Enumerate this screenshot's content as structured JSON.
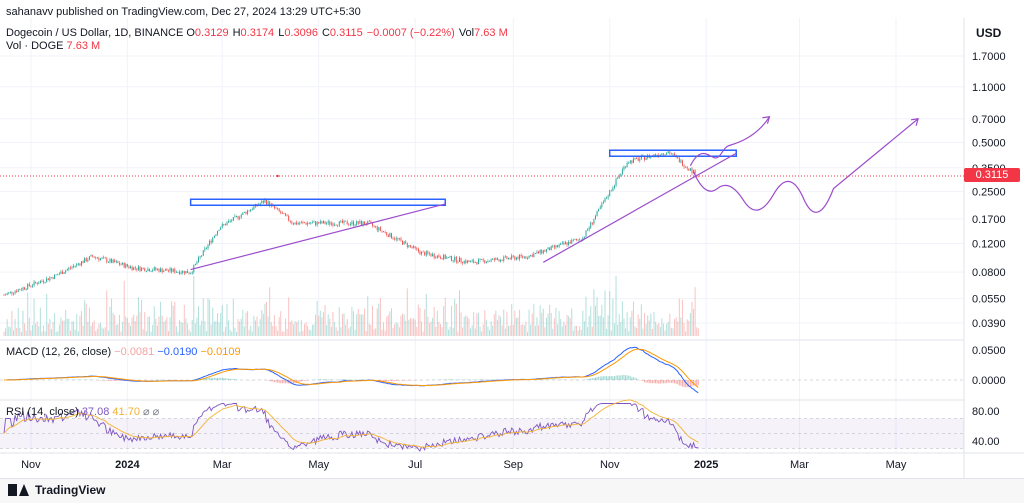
{
  "header": {
    "publisher": "sahanavv published on TradingView.com, Dec 27, 2024 13:29 UTC+5:30",
    "symbol": "Dogecoin / US Dollar, 1D, BINANCE",
    "ohlc": [
      {
        "k": "O",
        "v": "0.3129"
      },
      {
        "k": "H",
        "v": "0.3174"
      },
      {
        "k": "L",
        "v": "0.3096"
      },
      {
        "k": "C",
        "v": "0.3115"
      },
      {
        "k": "",
        "v": "−0.0007 (−0.22%)"
      },
      {
        "k": "Vol",
        "v": "7.63 M"
      }
    ],
    "vol_label": "Vol · DOGE",
    "vol_value": "7.63 M"
  },
  "price_axis": {
    "currency": "USD",
    "labels": [
      "1.7000",
      "1.1000",
      "0.7000",
      "0.5000",
      "0.3500",
      "0.2500",
      "0.1700",
      "0.1200",
      "0.0800",
      "0.0550",
      "0.0390"
    ],
    "last_price": "0.3115"
  },
  "macd": {
    "title": "MACD (12, 26, close)",
    "values": [
      "−0.0081",
      "−0.0190",
      "−0.0109"
    ],
    "axis": [
      "0.0500",
      "0.0000"
    ]
  },
  "rsi": {
    "title": "RSI (14, close)",
    "values": [
      "37.08",
      "41.70"
    ],
    "suffix": "⌀ ⌀",
    "axis": [
      "80.00",
      "40.00"
    ]
  },
  "time_axis": [
    "Nov",
    "2024",
    "Mar",
    "May",
    "Jul",
    "Sep",
    "Nov",
    "2025",
    "Mar",
    "May"
  ],
  "footer": {
    "brand": "TradingView"
  },
  "colors": {
    "up": "#26a69a",
    "down": "#ef5350",
    "macd": "#2962ff",
    "signal": "#ff9800",
    "rsi": "#7e57c2",
    "rsi_ma": "#f2b233",
    "annotation_box": "#2962ff",
    "annotation_line": "#9c4dcc",
    "last_price": "#f23645"
  },
  "chart_data": {
    "type": "candlestick",
    "symbol": "DOGE/USD",
    "interval": "1D",
    "y_scale": "log",
    "ylim": [
      0.035,
      2.0
    ],
    "x_range": [
      "2023-10-15",
      "2025-06-01"
    ],
    "approx_close_path": [
      {
        "date": "2023-10-15",
        "close": 0.058
      },
      {
        "date": "2023-11-15",
        "close": 0.075
      },
      {
        "date": "2023-12-10",
        "close": 0.1
      },
      {
        "date": "2024-01-05",
        "close": 0.085
      },
      {
        "date": "2024-02-10",
        "close": 0.08
      },
      {
        "date": "2024-02-28",
        "close": 0.15
      },
      {
        "date": "2024-03-28",
        "close": 0.22
      },
      {
        "date": "2024-04-15",
        "close": 0.16
      },
      {
        "date": "2024-06-01",
        "close": 0.16
      },
      {
        "date": "2024-07-05",
        "close": 0.105
      },
      {
        "date": "2024-08-05",
        "close": 0.092
      },
      {
        "date": "2024-09-10",
        "close": 0.1
      },
      {
        "date": "2024-10-15",
        "close": 0.13
      },
      {
        "date": "2024-11-12",
        "close": 0.38
      },
      {
        "date": "2024-12-08",
        "close": 0.44
      },
      {
        "date": "2024-12-27",
        "close": 0.3115
      }
    ],
    "last_price": 0.3115,
    "macd": {
      "macd": -0.019,
      "signal": -0.0109,
      "histogram": -0.0081
    },
    "rsi": {
      "rsi": 37.08,
      "ma": 41.7,
      "levels": [
        70,
        30
      ]
    },
    "annotations": [
      {
        "type": "resistance-box",
        "level": 0.215,
        "from": "2024-02-10",
        "to": "2024-07-20"
      },
      {
        "type": "resistance-box",
        "level": 0.43,
        "from": "2024-11-01",
        "to": "2025-01-20"
      },
      {
        "type": "trendline",
        "from": [
          "2024-02-10",
          0.083
        ],
        "to": [
          "2024-07-20",
          0.21
        ]
      },
      {
        "type": "trendline",
        "from": [
          "2024-09-20",
          0.092
        ],
        "to": [
          "2025-01-20",
          0.43
        ]
      },
      {
        "type": "projection-up",
        "to": [
          "2025-02-10",
          0.72
        ]
      },
      {
        "type": "projection-wave",
        "to": [
          "2025-05-15",
          0.7
        ]
      }
    ]
  }
}
